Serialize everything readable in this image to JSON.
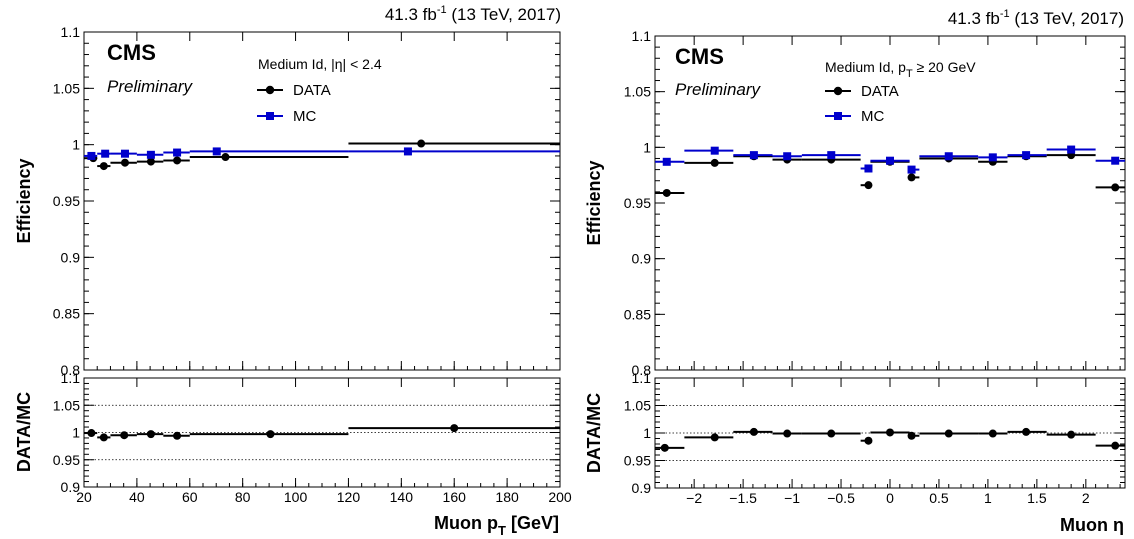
{
  "colors": {
    "data": "#000000",
    "mc": "#0000cc"
  },
  "chart_data": [
    {
      "type": "scatter",
      "panel": "left",
      "lumi_label": "41.3 fb",
      "lumi_exponent": "-1",
      "lumi_suffix": " (13 TeV, 2017)",
      "experiment": "CMS",
      "status": "Preliminary",
      "legend_title": "Medium Id, |η| < 2.4",
      "legend_placement": "top-center",
      "xlabel": "Muon p",
      "xlabel_sub": "T",
      "xlabel_suffix": " [GeV]",
      "ylabel": "Efficiency",
      "ratio_ylabel": "DATA/MC",
      "xlim": [
        20,
        200
      ],
      "ylim": [
        0.8,
        1.1
      ],
      "ratio_ylim": [
        0.9,
        1.1
      ],
      "xticks": [
        "20",
        "40",
        "60",
        "80",
        "100",
        "120",
        "140",
        "160",
        "180",
        "200"
      ],
      "yticks": [
        "0.8",
        "0.85",
        "0.9",
        "0.95",
        "1",
        "1.05",
        "1.1"
      ],
      "ratio_yticks": [
        "0.9",
        "0.95",
        "1",
        "1.05",
        "1.1"
      ],
      "bins": [
        [
          20,
          25
        ],
        [
          25,
          30
        ],
        [
          30,
          40
        ],
        [
          40,
          50
        ],
        [
          50,
          60
        ],
        [
          60,
          120
        ],
        [
          120,
          200
        ]
      ],
      "series": [
        {
          "name": "DATA",
          "marker": "circle",
          "x": [
            23.5,
            27.5,
            35.5,
            45.3,
            55.2,
            73.5,
            147.5
          ],
          "y": [
            0.988,
            0.981,
            0.984,
            0.985,
            0.986,
            0.989,
            1.001
          ]
        },
        {
          "name": "MC",
          "marker": "square",
          "x": [
            22.8,
            28.0,
            35.5,
            45.3,
            55.2,
            70.2,
            142.5
          ],
          "y": [
            0.99,
            0.992,
            0.992,
            0.991,
            0.993,
            0.994,
            0.994
          ]
        }
      ],
      "ratio": {
        "x": [
          22.8,
          27.5,
          35.2,
          45.3,
          55.2,
          90.5,
          160.0
        ],
        "y": [
          0.999,
          0.991,
          0.995,
          0.997,
          0.994,
          0.997,
          1.008
        ]
      }
    },
    {
      "type": "scatter",
      "panel": "right",
      "lumi_label": "41.3 fb",
      "lumi_exponent": "-1",
      "lumi_suffix": " (13 TeV, 2017)",
      "experiment": "CMS",
      "status": "Preliminary",
      "legend_title": "Medium Id, p",
      "legend_title_sub": "T",
      "legend_title_suffix": " ≥ 20 GeV",
      "legend_placement": "top-center",
      "xlabel": "Muon η",
      "ylabel": "Efficiency",
      "ratio_ylabel": "DATA/MC",
      "xlim": [
        -2.4,
        2.4
      ],
      "ylim": [
        0.8,
        1.1
      ],
      "ratio_ylim": [
        0.9,
        1.1
      ],
      "xticks": [
        "−2",
        "−1.5",
        "−1",
        "−0.5",
        "0",
        "0.5",
        "1",
        "1.5",
        "2"
      ],
      "yticks": [
        "0.8",
        "0.85",
        "0.9",
        "0.95",
        "1",
        "1.05",
        "1.1"
      ],
      "ratio_yticks": [
        "0.9",
        "0.95",
        "1",
        "1.05",
        "1.1"
      ],
      "bins": [
        [
          -2.4,
          -2.1
        ],
        [
          -2.1,
          -1.6
        ],
        [
          -1.6,
          -1.2
        ],
        [
          -1.2,
          -0.9
        ],
        [
          -0.9,
          -0.3
        ],
        [
          -0.3,
          -0.2
        ],
        [
          -0.2,
          0.2
        ],
        [
          0.2,
          0.3
        ],
        [
          0.3,
          0.9
        ],
        [
          0.9,
          1.2
        ],
        [
          1.2,
          1.6
        ],
        [
          1.6,
          2.1
        ],
        [
          2.1,
          2.4
        ]
      ],
      "series": [
        {
          "name": "DATA",
          "marker": "circle",
          "x": [
            -2.28,
            -1.79,
            -1.39,
            -1.05,
            -0.6,
            -0.22,
            0.0,
            0.22,
            0.6,
            1.05,
            1.39,
            1.85,
            2.3
          ],
          "y": [
            0.959,
            0.986,
            0.992,
            0.989,
            0.989,
            0.966,
            0.987,
            0.973,
            0.99,
            0.987,
            0.992,
            0.993,
            0.964
          ]
        },
        {
          "name": "MC",
          "marker": "square",
          "x": [
            -2.28,
            -1.79,
            -1.39,
            -1.05,
            -0.6,
            -0.22,
            0.0,
            0.22,
            0.6,
            1.05,
            1.39,
            1.85,
            2.3
          ],
          "y": [
            0.987,
            0.997,
            0.993,
            0.992,
            0.993,
            0.981,
            0.988,
            0.98,
            0.992,
            0.991,
            0.993,
            0.998,
            0.988
          ]
        }
      ],
      "ratio": {
        "x": [
          -2.3,
          -1.79,
          -1.39,
          -1.05,
          -0.6,
          -0.22,
          0.0,
          0.22,
          0.6,
          1.05,
          1.39,
          1.85,
          2.3
        ],
        "y": [
          0.973,
          0.992,
          1.002,
          0.999,
          0.999,
          0.986,
          1.001,
          0.995,
          0.999,
          0.999,
          1.002,
          0.997,
          0.977
        ]
      }
    }
  ]
}
